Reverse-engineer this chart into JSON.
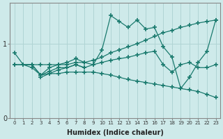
{
  "background_color": "#ceeaea",
  "grid_color": "#b0d4d4",
  "line_color": "#1a7a6e",
  "xlabel": "Humidex (Indice chaleur)",
  "xlim": [
    -0.5,
    23.5
  ],
  "ylim": [
    0,
    1.55
  ],
  "yticks": [
    0,
    1
  ],
  "xticks": [
    0,
    1,
    2,
    3,
    4,
    5,
    6,
    7,
    8,
    9,
    10,
    11,
    12,
    13,
    14,
    15,
    16,
    17,
    18,
    19,
    20,
    21,
    22,
    23
  ],
  "series": [
    {
      "x": [
        0,
        1,
        2,
        3,
        4,
        5,
        6,
        7,
        8,
        9,
        10,
        11,
        12,
        13,
        14,
        15,
        16,
        17,
        18,
        19,
        20,
        21,
        22,
        23
      ],
      "y": [
        0.88,
        0.72,
        0.72,
        0.58,
        0.63,
        0.68,
        0.68,
        0.72,
        0.68,
        0.72,
        0.92,
        1.38,
        1.3,
        1.22,
        1.32,
        1.2,
        1.22,
        0.96,
        0.82,
        0.4,
        0.55,
        0.75,
        0.9,
        1.32
      ]
    },
    {
      "x": [
        0,
        1,
        2,
        3,
        4,
        5,
        6,
        7,
        8,
        9,
        10,
        11,
        12,
        13,
        14,
        15,
        16,
        17,
        18,
        19,
        20,
        21,
        22,
        23
      ],
      "y": [
        0.72,
        0.72,
        0.72,
        0.72,
        0.72,
        0.72,
        0.72,
        0.75,
        0.75,
        0.78,
        0.82,
        0.88,
        0.92,
        0.96,
        1.0,
        1.05,
        1.1,
        1.15,
        1.18,
        1.22,
        1.25,
        1.28,
        1.3,
        1.32
      ]
    },
    {
      "x": [
        0,
        1,
        2,
        3,
        4,
        5,
        6,
        7,
        8,
        9,
        10,
        11,
        12,
        13,
        14,
        15,
        16,
        17,
        18,
        19,
        20,
        21,
        22,
        23
      ],
      "y": [
        0.72,
        0.72,
        0.72,
        0.58,
        0.6,
        0.6,
        0.62,
        0.62,
        0.62,
        0.62,
        0.6,
        0.58,
        0.55,
        0.52,
        0.5,
        0.48,
        0.46,
        0.44,
        0.42,
        0.4,
        0.38,
        0.36,
        0.32,
        0.28
      ]
    },
    {
      "x": [
        1,
        2,
        3,
        4,
        5,
        6,
        7,
        8,
        9,
        10,
        11,
        12,
        13,
        14,
        15,
        16,
        17,
        18,
        19,
        20,
        21,
        22,
        23
      ],
      "y": [
        0.72,
        0.68,
        0.58,
        0.68,
        0.72,
        0.75,
        0.8,
        0.75,
        0.72,
        0.75,
        0.78,
        0.8,
        0.82,
        0.85,
        0.88,
        0.9,
        0.72,
        0.62,
        0.72,
        0.75,
        0.68,
        0.68,
        0.72
      ]
    },
    {
      "x": [
        3,
        4,
        5,
        6,
        7,
        8
      ],
      "y": [
        0.55,
        0.6,
        0.65,
        0.68,
        0.72,
        0.68
      ]
    }
  ]
}
